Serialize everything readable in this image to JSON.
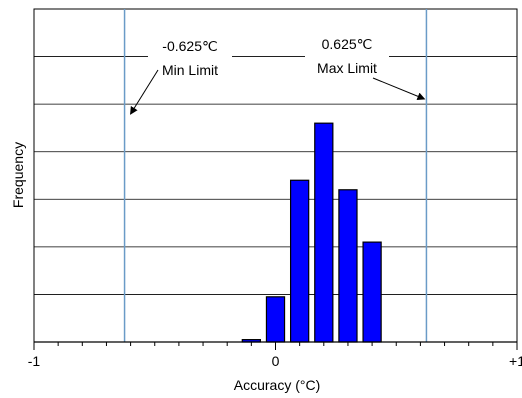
{
  "chart_data": {
    "type": "bar",
    "xlabel": "Accuracy (°C)",
    "ylabel": "Frequency",
    "xlim": [
      -1,
      1
    ],
    "ylim": [
      0,
      7
    ],
    "grid": true,
    "x_ticks": [
      {
        "value": -1,
        "label": "-1"
      },
      {
        "value": 0,
        "label": "0"
      },
      {
        "value": 1,
        "label": "+1"
      }
    ],
    "bar_width": 0.075,
    "bars": [
      {
        "x": -0.1,
        "y": 0.05
      },
      {
        "x": 0.0,
        "y": 0.95
      },
      {
        "x": 0.1,
        "y": 3.4
      },
      {
        "x": 0.2,
        "y": 4.6
      },
      {
        "x": 0.3,
        "y": 3.2
      },
      {
        "x": 0.4,
        "y": 2.1
      }
    ],
    "bar_color": "#0000ff",
    "limit_color": "#6a9bc7",
    "limits": [
      {
        "name": "min",
        "value": -0.625,
        "value_label": "-0.625℃",
        "label": "Min Limit"
      },
      {
        "name": "max",
        "value": 0.625,
        "value_label": "0.625℃",
        "label": "Max Limit"
      }
    ]
  }
}
